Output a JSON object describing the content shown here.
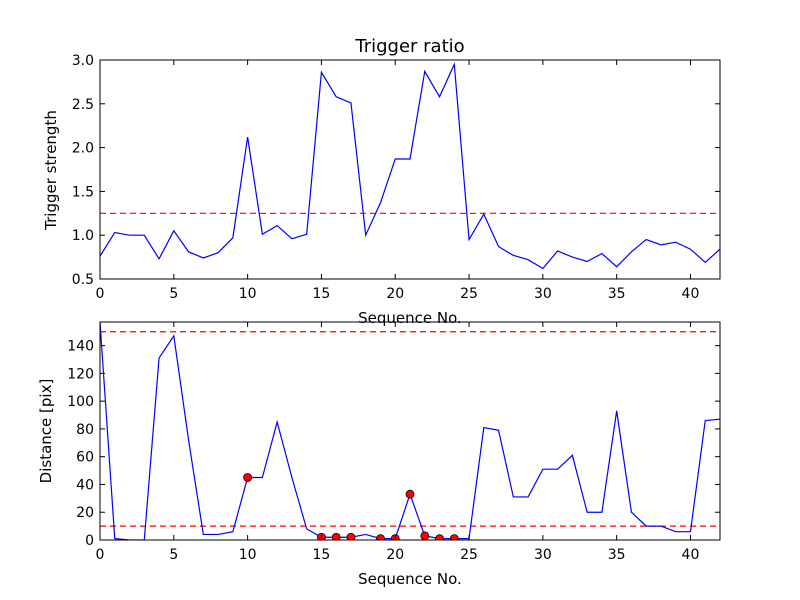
{
  "chart_data": [
    {
      "type": "line",
      "title": "Trigger ratio",
      "xlabel": "Sequence No.",
      "ylabel": "Trigger strength",
      "xlim": [
        0,
        42
      ],
      "ylim": [
        0.5,
        3.0
      ],
      "xticks": [
        0,
        5,
        10,
        15,
        20,
        25,
        30,
        35,
        40
      ],
      "yticks": [
        0.5,
        1.0,
        1.5,
        2.0,
        2.5,
        3.0
      ],
      "grid": false,
      "series": [
        {
          "color": "#0000ff",
          "x": [
            0,
            1,
            2,
            3,
            4,
            5,
            6,
            7,
            8,
            9,
            10,
            11,
            12,
            13,
            14,
            15,
            16,
            17,
            18,
            19,
            20,
            21,
            22,
            23,
            24,
            25,
            26,
            27,
            28,
            29,
            30,
            31,
            32,
            33,
            34,
            35,
            36,
            37,
            38,
            39,
            40,
            41,
            42
          ],
          "values": [
            0.76,
            1.03,
            1.0,
            1.0,
            0.73,
            1.05,
            0.81,
            0.74,
            0.8,
            0.97,
            2.12,
            1.01,
            1.11,
            0.96,
            1.01,
            2.86,
            2.58,
            2.51,
            1.0,
            1.37,
            1.87,
            1.87,
            2.87,
            2.58,
            2.95,
            0.95,
            1.24,
            0.87,
            0.77,
            0.72,
            0.62,
            0.82,
            0.75,
            0.7,
            0.79,
            0.64,
            0.81,
            0.95,
            0.89,
            0.92,
            0.84,
            0.69,
            0.84
          ]
        }
      ],
      "hlines": [
        {
          "y": 1.25,
          "color": "#ff0000",
          "style": "dashed"
        }
      ]
    },
    {
      "type": "line",
      "title": "",
      "xlabel": "Sequence No.",
      "ylabel": "Distance [pix]",
      "xlim": [
        0,
        42
      ],
      "ylim": [
        0,
        157
      ],
      "xticks": [
        0,
        5,
        10,
        15,
        20,
        25,
        30,
        35,
        40
      ],
      "yticks": [
        0,
        20,
        40,
        60,
        80,
        100,
        120,
        140
      ],
      "grid": false,
      "series": [
        {
          "color": "#0000ff",
          "x": [
            0,
            1,
            2,
            3,
            4,
            5,
            6,
            7,
            8,
            9,
            10,
            11,
            12,
            13,
            14,
            15,
            16,
            17,
            18,
            19,
            20,
            21,
            22,
            23,
            24,
            25,
            26,
            27,
            28,
            29,
            30,
            31,
            32,
            33,
            34,
            35,
            36,
            37,
            38,
            39,
            40,
            41,
            42
          ],
          "values": [
            157,
            1,
            0,
            0,
            131,
            147,
            72,
            4,
            4,
            6,
            45,
            45,
            85,
            45,
            8,
            2,
            2,
            2,
            4,
            1,
            1,
            33,
            3,
            1,
            1,
            1,
            81,
            79,
            31,
            31,
            51,
            51,
            61,
            20,
            20,
            93,
            20,
            10,
            10,
            6,
            6,
            86,
            87
          ]
        },
        {
          "color": "#ff0000",
          "marker": "circle",
          "x": [
            10,
            15,
            16,
            17,
            19,
            20,
            21,
            22,
            23,
            24
          ],
          "values": [
            45,
            2,
            2,
            2,
            1,
            1,
            33,
            3,
            1,
            1
          ]
        }
      ],
      "hlines": [
        {
          "y": 150,
          "color": "#ff0000",
          "style": "dashed"
        },
        {
          "y": 10,
          "color": "#ff0000",
          "style": "dashed"
        }
      ]
    }
  ]
}
